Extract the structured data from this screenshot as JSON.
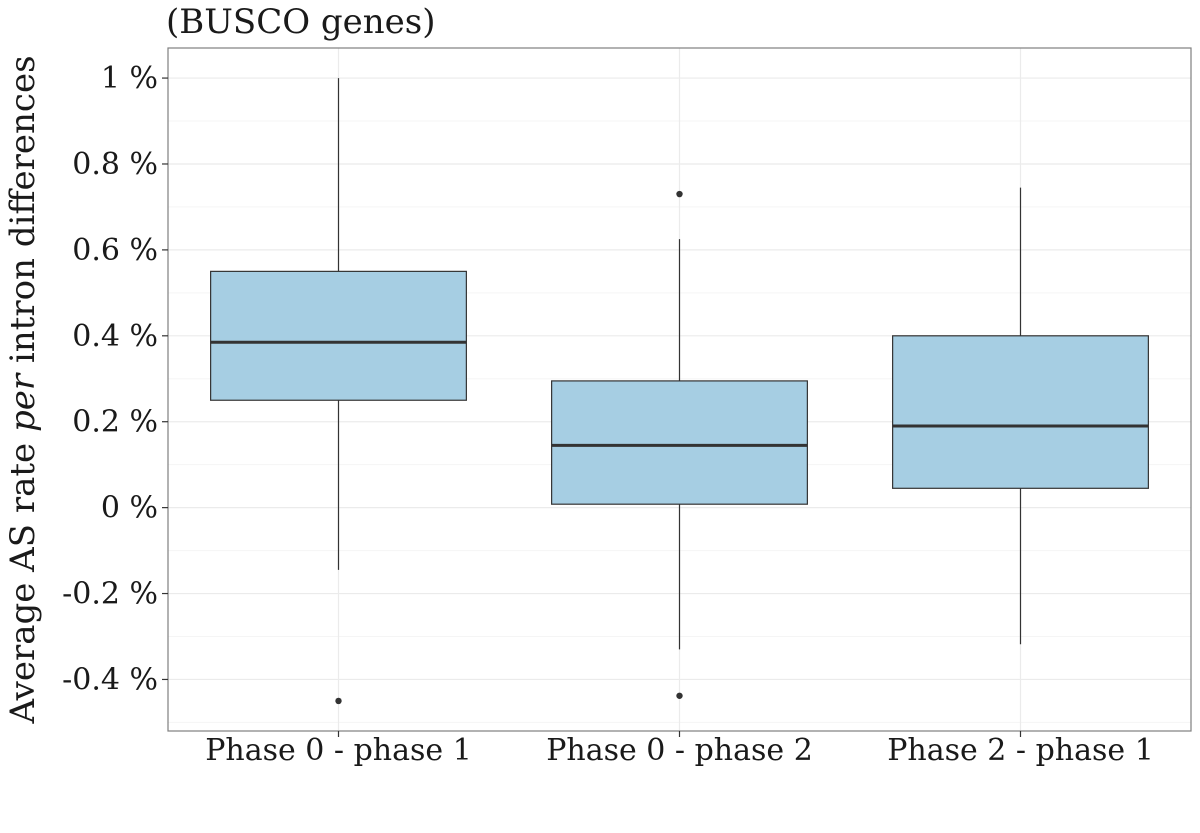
{
  "chart_data": {
    "type": "box",
    "title": "(BUSCO genes)",
    "ylabel_parts": [
      {
        "text": "Average AS rate ",
        "italic": false
      },
      {
        "text": "per",
        "italic": true
      },
      {
        "text": " intron differences",
        "italic": false
      }
    ],
    "xlabel": "",
    "categories": [
      "Phase 0 - phase 1",
      "Phase 0 - phase 2",
      "Phase 2 - phase 1"
    ],
    "ylim": [
      -0.52,
      1.07
    ],
    "y_ticks": [
      -0.4,
      -0.2,
      0,
      0.2,
      0.4,
      0.6,
      0.8,
      1
    ],
    "y_tick_labels": [
      "-0.4 %",
      "-0.2 %",
      "0 %",
      "0.2 %",
      "0.4 %",
      "0.6 %",
      "0.8 %",
      "1 %"
    ],
    "grid": true,
    "boxes": [
      {
        "category": "Phase 0 - phase 1",
        "whisker_low": -0.145,
        "q1": 0.25,
        "median": 0.385,
        "q3": 0.55,
        "whisker_high": 1.0,
        "outliers": [
          -0.45
        ]
      },
      {
        "category": "Phase 0 - phase 2",
        "whisker_low": -0.33,
        "q1": 0.008,
        "median": 0.145,
        "q3": 0.295,
        "whisker_high": 0.625,
        "outliers": [
          0.73,
          -0.438
        ]
      },
      {
        "category": "Phase 2 - phase 1",
        "whisker_low": -0.318,
        "q1": 0.045,
        "median": 0.19,
        "q3": 0.4,
        "whisker_high": 0.745,
        "outliers": []
      }
    ],
    "colors": {
      "box_fill": "#a6cee3",
      "box_stroke": "#333333",
      "grid_major": "#ebebeb",
      "grid_minor": "#f5f5f5",
      "panel_border": "#7f7f7f"
    }
  }
}
